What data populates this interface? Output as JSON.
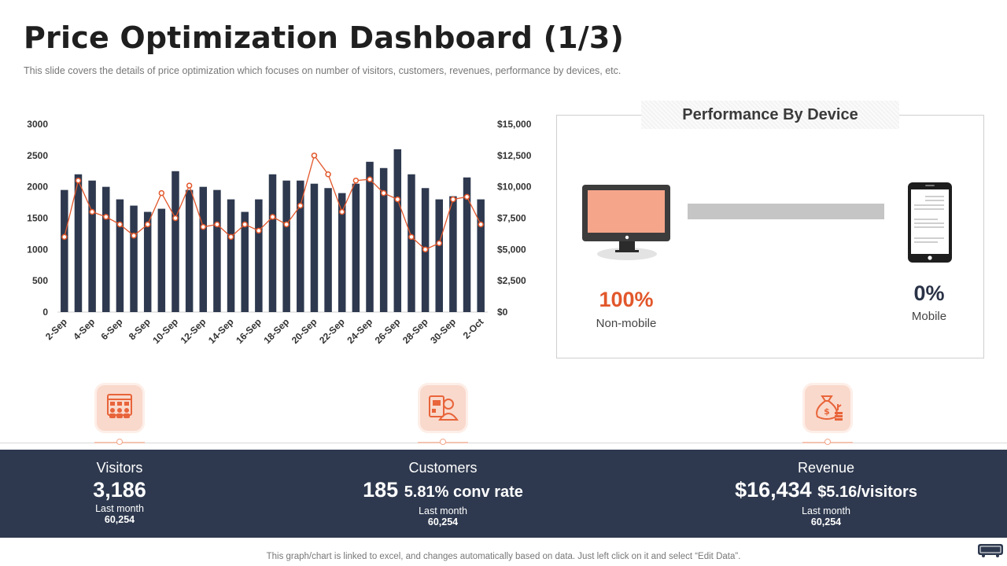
{
  "header": {
    "title": "Price Optimization Dashboard (1/3)",
    "subtitle": "This slide covers the details of price optimization which focuses on number of visitors, customers, revenues,  performance  by devices, etc."
  },
  "chart_data": {
    "type": "bar",
    "title": "",
    "categories": [
      "2-Sep",
      "3-Sep",
      "4-Sep",
      "5-Sep",
      "6-Sep",
      "7-Sep",
      "8-Sep",
      "9-Sep",
      "10-Sep",
      "11-Sep",
      "12-Sep",
      "13-Sep",
      "14-Sep",
      "15-Sep",
      "16-Sep",
      "17-Sep",
      "18-Sep",
      "19-Sep",
      "20-Sep",
      "21-Sep",
      "22-Sep",
      "23-Sep",
      "24-Sep",
      "25-Sep",
      "26-Sep",
      "27-Sep",
      "28-Sep",
      "29-Sep",
      "30-Sep",
      "1-Oct",
      "2-Oct"
    ],
    "tick_labels": [
      "2-Sep",
      "4-Sep",
      "6-Sep",
      "8-Sep",
      "10-Sep",
      "12-Sep",
      "14-Sep",
      "16-Sep",
      "18-Sep",
      "20-Sep",
      "22-Sep",
      "24-Sep",
      "26-Sep",
      "28-Sep",
      "30-Sep",
      "2-Oct"
    ],
    "series": [
      {
        "name": "Visitors",
        "type": "bar",
        "axis": "left",
        "color": "#2e394f",
        "values": [
          1950,
          2200,
          2100,
          2000,
          1800,
          1700,
          1600,
          1650,
          2250,
          1950,
          2000,
          1950,
          1800,
          1600,
          1800,
          2200,
          2100,
          2100,
          2050,
          1980,
          1900,
          2050,
          2400,
          2300,
          2600,
          2200,
          1980,
          1800,
          1850,
          2150,
          1800
        ]
      },
      {
        "name": "Revenue",
        "type": "line",
        "axis": "right",
        "color": "#e2572b",
        "values": [
          6000,
          10500,
          8000,
          7600,
          7000,
          6100,
          7000,
          9500,
          7500,
          10100,
          6800,
          7000,
          6000,
          7000,
          6500,
          7600,
          7000,
          8500,
          12500,
          11000,
          8000,
          10500,
          10600,
          9500,
          9000,
          6000,
          5000,
          5500,
          9000,
          9200,
          7000
        ]
      }
    ],
    "y_left": {
      "ticks": [
        "0",
        "500",
        "1000",
        "1500",
        "2000",
        "2500",
        "3000"
      ],
      "range": [
        0,
        3000
      ]
    },
    "y_right": {
      "ticks": [
        "$0",
        "$2,500",
        "$5,000",
        "$7,500",
        "$10,000",
        "$12,500",
        "$15,000"
      ],
      "range": [
        0,
        15000
      ]
    },
    "legend": "none",
    "grid": false
  },
  "device": {
    "header": "Performance By Device",
    "non_mobile_pct": "100%",
    "non_mobile_label": "Non-mobile",
    "mobile_pct": "0%",
    "mobile_label": "Mobile",
    "non_mobile_share": 1.0,
    "colors": {
      "screen": "#f5a58a",
      "frame": "#3c3c3c",
      "bar": "#c5c5c5"
    }
  },
  "kpis": [
    {
      "label": "Visitors",
      "value": "3,186",
      "extra": "",
      "sub": "Last month",
      "sub_value": "60,254",
      "icon": "audience-icon"
    },
    {
      "label": "Customers",
      "value": "185",
      "extra": "5.81% conv rate",
      "sub": "Last month",
      "sub_value": "60,254",
      "icon": "customer-icon"
    },
    {
      "label": "Revenue",
      "value": "$16,434",
      "extra": "$5.16/visitors",
      "sub": "Last month",
      "sub_value": "60,254",
      "icon": "money-bag-icon"
    }
  ],
  "footer": "This graph/chart is linked to excel,  and changes automatically based on data. Just left click on it and select “Edit Data”.",
  "colors": {
    "accent": "#e2572b",
    "band": "#2e394f",
    "icon_bg": "#f9d9cc"
  }
}
